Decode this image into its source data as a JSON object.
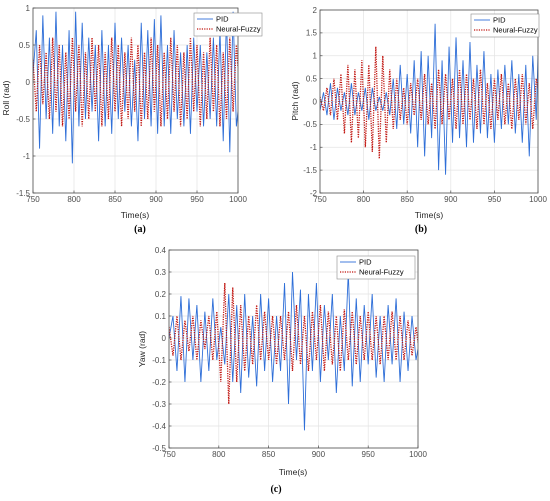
{
  "colors": {
    "pid": "#2f6fd8",
    "fuzzy": "#c0140f",
    "grid": "#e3e3e3",
    "axis": "#4d4d4d"
  },
  "chart_data": [
    {
      "type": "line",
      "panel_label": "(a)",
      "xlabel": "Time(s)",
      "ylabel": "Roll (rad)",
      "xlim": [
        750,
        1000
      ],
      "ylim": [
        -1.5,
        1
      ],
      "xticks": [
        750,
        800,
        850,
        900,
        950,
        1000
      ],
      "yticks": [
        -1.5,
        -1,
        -0.5,
        0,
        0.5,
        1
      ],
      "grid": true,
      "legend_position": "top-right",
      "series": [
        {
          "name": "PID",
          "style": "solid",
          "color": "#2f6fd8",
          "x": [
            750,
            754,
            758,
            762,
            766,
            770,
            774,
            778,
            782,
            786,
            790,
            794,
            798,
            802,
            806,
            810,
            814,
            818,
            822,
            826,
            830,
            834,
            838,
            842,
            846,
            850,
            854,
            858,
            862,
            866,
            870,
            874,
            878,
            882,
            886,
            890,
            894,
            898,
            902,
            906,
            910,
            914,
            918,
            922,
            926,
            930,
            934,
            938,
            942,
            946,
            950,
            954,
            958,
            962,
            966,
            970,
            974,
            978,
            982,
            986,
            990,
            994,
            998,
            1000
          ],
          "y": [
            0.1,
            0.7,
            -0.9,
            0.9,
            -0.5,
            0.6,
            -0.7,
            0.95,
            -0.6,
            0.5,
            -0.8,
            0.7,
            -1.1,
            0.95,
            -0.6,
            0.8,
            -0.5,
            0.6,
            -0.4,
            0.5,
            -0.8,
            0.7,
            -0.6,
            0.5,
            -0.7,
            0.8,
            -0.5,
            0.6,
            -0.4,
            0.5,
            -0.6,
            0.3,
            -0.8,
            0.8,
            -0.5,
            0.7,
            -0.6,
            0.85,
            -0.7,
            0.9,
            -0.6,
            0.5,
            -0.7,
            0.7,
            -0.5,
            0.4,
            -0.6,
            0.5,
            -0.7,
            0.6,
            -0.4,
            0.5,
            -0.6,
            0.4,
            -0.5,
            0.6,
            -0.6,
            0.7,
            -0.8,
            0.9,
            -0.95,
            0.95,
            -0.6,
            -0.4
          ]
        },
        {
          "name": "Neural-Fuzzy",
          "style": "dotted",
          "color": "#c0140f",
          "x": [
            750,
            754,
            758,
            762,
            766,
            770,
            774,
            778,
            782,
            786,
            790,
            794,
            798,
            802,
            806,
            810,
            814,
            818,
            822,
            826,
            830,
            834,
            838,
            842,
            846,
            850,
            854,
            858,
            862,
            866,
            870,
            874,
            878,
            882,
            886,
            890,
            894,
            898,
            902,
            906,
            910,
            914,
            918,
            922,
            926,
            930,
            934,
            938,
            942,
            946,
            950,
            954,
            958,
            962,
            966,
            970,
            974,
            978,
            982,
            986,
            990,
            994,
            998,
            1000
          ],
          "y": [
            0.3,
            -0.4,
            0.5,
            -0.3,
            0.4,
            -0.5,
            0.6,
            -0.4,
            0.5,
            -0.6,
            0.4,
            -0.5,
            0.6,
            -0.4,
            0.5,
            -0.6,
            0.4,
            -0.5,
            0.6,
            -0.4,
            0.5,
            -0.6,
            0.4,
            -0.5,
            0.6,
            -0.4,
            0.5,
            -0.6,
            0.4,
            -0.5,
            0.6,
            -0.4,
            0.5,
            -0.6,
            0.4,
            -0.5,
            0.6,
            -0.4,
            0.5,
            -0.6,
            0.4,
            -0.5,
            0.6,
            -0.4,
            0.5,
            -0.6,
            0.4,
            -0.5,
            0.6,
            -0.4,
            0.5,
            -0.6,
            0.4,
            -0.5,
            0.6,
            -0.4,
            0.5,
            -0.6,
            0.4,
            -0.5,
            0.6,
            -0.4,
            0.5,
            0.2
          ]
        }
      ]
    },
    {
      "type": "line",
      "panel_label": "(b)",
      "xlabel": "Time(s)",
      "ylabel": "Pitch (rad)",
      "xlim": [
        750,
        1000
      ],
      "ylim": [
        -2,
        2
      ],
      "xticks": [
        750,
        800,
        850,
        900,
        950,
        1000
      ],
      "yticks": [
        -2,
        -1.5,
        -1,
        -0.5,
        0,
        0.5,
        1,
        1.5,
        2
      ],
      "grid": true,
      "legend_position": "top-right",
      "series": [
        {
          "name": "PID",
          "style": "solid",
          "color": "#2f6fd8",
          "x": [
            750,
            754,
            758,
            762,
            766,
            770,
            774,
            778,
            782,
            786,
            790,
            794,
            798,
            802,
            806,
            810,
            814,
            818,
            822,
            826,
            830,
            834,
            838,
            842,
            846,
            850,
            854,
            858,
            862,
            866,
            870,
            874,
            878,
            882,
            886,
            890,
            894,
            898,
            902,
            906,
            910,
            914,
            918,
            922,
            926,
            930,
            934,
            938,
            942,
            946,
            950,
            954,
            958,
            962,
            966,
            970,
            974,
            978,
            982,
            986,
            990,
            994,
            998,
            1000
          ],
          "y": [
            -0.2,
            0.2,
            -0.3,
            0.4,
            -0.4,
            0.3,
            -0.2,
            0.2,
            -0.3,
            0.4,
            -0.3,
            0.2,
            -0.2,
            0.3,
            -0.4,
            0.3,
            -0.2,
            0.1,
            -0.2,
            0.2,
            -0.3,
            0.5,
            -0.6,
            0.8,
            -0.5,
            0.6,
            -0.7,
            0.9,
            -1.0,
            1.1,
            -1.2,
            1.0,
            -0.8,
            1.7,
            -1.5,
            0.9,
            -1.6,
            1.2,
            -0.9,
            1.4,
            -0.8,
            0.9,
            -1.0,
            1.3,
            -0.9,
            0.8,
            -0.7,
            1.1,
            -0.8,
            0.6,
            -0.9,
            0.7,
            -0.6,
            0.8,
            -0.5,
            0.9,
            -0.7,
            0.6,
            -0.9,
            0.8,
            -1.2,
            1.0,
            -0.4,
            1.0
          ]
        },
        {
          "name": "Neural-Fuzzy",
          "style": "dotted",
          "color": "#c0140f",
          "x": [
            750,
            754,
            758,
            762,
            766,
            770,
            774,
            778,
            782,
            786,
            790,
            794,
            798,
            802,
            806,
            810,
            814,
            818,
            822,
            826,
            830,
            834,
            838,
            842,
            846,
            850,
            854,
            858,
            862,
            866,
            870,
            874,
            878,
            882,
            886,
            890,
            894,
            898,
            902,
            906,
            910,
            914,
            918,
            922,
            926,
            930,
            934,
            938,
            942,
            946,
            950,
            954,
            958,
            962,
            966,
            970,
            974,
            978,
            982,
            986,
            990,
            994,
            998,
            1000
          ],
          "y": [
            0.1,
            -0.2,
            0.3,
            -0.3,
            0.5,
            -0.4,
            0.6,
            -0.7,
            0.8,
            -0.9,
            0.7,
            -0.8,
            0.9,
            -1.0,
            0.8,
            -1.1,
            1.2,
            -1.25,
            1.0,
            -0.9,
            0.7,
            -0.6,
            0.5,
            -0.4,
            0.3,
            -0.5,
            0.4,
            -0.3,
            0.5,
            -0.4,
            0.6,
            -0.5,
            0.4,
            -0.6,
            0.7,
            -0.5,
            0.6,
            -0.4,
            0.5,
            -0.6,
            0.7,
            -0.5,
            0.6,
            -0.4,
            0.5,
            -0.6,
            0.7,
            -0.5,
            0.4,
            -0.6,
            0.5,
            -0.4,
            0.6,
            -0.5,
            0.4,
            -0.6,
            0.5,
            -0.4,
            0.6,
            -0.5,
            0.4,
            -0.6,
            0.5,
            0.3
          ]
        }
      ]
    },
    {
      "type": "line",
      "panel_label": "(c)",
      "xlabel": "Time(s)",
      "ylabel": "Yaw (rad)",
      "xlim": [
        750,
        1000
      ],
      "ylim": [
        -0.5,
        0.4
      ],
      "xticks": [
        750,
        800,
        850,
        900,
        950,
        1000
      ],
      "yticks": [
        -0.5,
        -0.4,
        -0.3,
        -0.2,
        -0.1,
        0,
        0.1,
        0.2,
        0.3,
        0.4
      ],
      "grid": true,
      "legend_position": "top-right",
      "series": [
        {
          "name": "PID",
          "style": "solid",
          "color": "#2f6fd8",
          "x": [
            750,
            754,
            758,
            762,
            766,
            770,
            774,
            778,
            782,
            786,
            790,
            794,
            798,
            802,
            806,
            810,
            814,
            818,
            822,
            826,
            830,
            834,
            838,
            842,
            846,
            850,
            854,
            858,
            862,
            866,
            870,
            874,
            878,
            882,
            886,
            890,
            894,
            898,
            902,
            906,
            910,
            914,
            918,
            922,
            926,
            930,
            934,
            938,
            942,
            946,
            950,
            954,
            958,
            962,
            966,
            970,
            974,
            978,
            982,
            986,
            990,
            994,
            998,
            1000
          ],
          "y": [
            0.0,
            0.1,
            -0.15,
            0.19,
            -0.2,
            0.18,
            -0.1,
            0.15,
            -0.2,
            0.12,
            -0.15,
            0.18,
            -0.1,
            0.05,
            -0.12,
            0.2,
            -0.2,
            0.15,
            -0.25,
            0.2,
            -0.18,
            0.1,
            -0.22,
            0.2,
            -0.15,
            0.18,
            -0.2,
            0.1,
            -0.15,
            0.25,
            -0.3,
            0.3,
            -0.1,
            0.22,
            -0.42,
            0.2,
            -0.15,
            0.25,
            -0.2,
            0.15,
            -0.1,
            0.2,
            -0.25,
            0.1,
            -0.15,
            0.3,
            -0.22,
            0.18,
            -0.2,
            0.15,
            -0.12,
            0.2,
            -0.18,
            0.1,
            -0.2,
            0.15,
            -0.12,
            0.18,
            -0.2,
            0.12,
            -0.15,
            0.1,
            -0.1,
            -0.05
          ]
        },
        {
          "name": "Neural-Fuzzy",
          "style": "dotted",
          "color": "#c0140f",
          "x": [
            750,
            754,
            758,
            762,
            766,
            770,
            774,
            778,
            782,
            786,
            790,
            794,
            798,
            802,
            806,
            810,
            814,
            818,
            822,
            826,
            830,
            834,
            838,
            842,
            846,
            850,
            854,
            858,
            862,
            866,
            870,
            874,
            878,
            882,
            886,
            890,
            894,
            898,
            902,
            906,
            910,
            914,
            918,
            922,
            926,
            930,
            934,
            938,
            942,
            946,
            950,
            954,
            958,
            962,
            966,
            970,
            974,
            978,
            982,
            986,
            990,
            994,
            998,
            1000
          ],
          "y": [
            0.05,
            -0.08,
            0.1,
            -0.1,
            0.08,
            -0.06,
            0.1,
            -0.1,
            0.08,
            -0.05,
            0.1,
            -0.1,
            0.12,
            -0.2,
            0.25,
            -0.3,
            0.23,
            -0.2,
            0.15,
            -0.15,
            0.1,
            -0.12,
            0.15,
            -0.1,
            0.12,
            -0.1,
            0.1,
            -0.12,
            0.1,
            -0.1,
            0.12,
            -0.15,
            0.15,
            -0.12,
            0.1,
            -0.15,
            0.12,
            -0.1,
            0.15,
            -0.15,
            0.12,
            -0.12,
            0.1,
            -0.15,
            0.13,
            -0.1,
            0.12,
            -0.12,
            0.1,
            -0.1,
            0.12,
            -0.1,
            0.1,
            -0.12,
            0.1,
            -0.1,
            0.12,
            -0.1,
            0.1,
            -0.1,
            0.08,
            -0.08,
            0.05,
            -0.02
          ]
        }
      ]
    }
  ]
}
